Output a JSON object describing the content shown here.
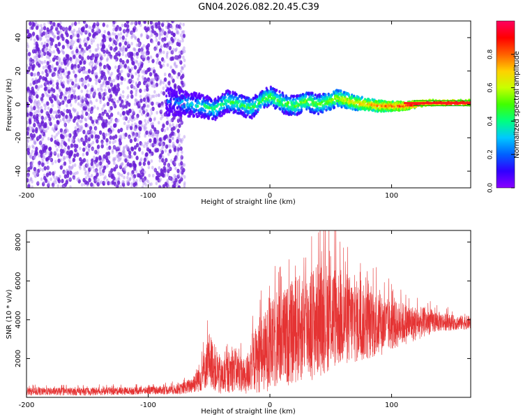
{
  "title": "GN04.2026.082.20.45.C39",
  "colors": {
    "snr_line": "#e53333",
    "scatter_noise": "#7b2fd9",
    "frame": "#000000"
  },
  "chart_data": [
    {
      "type": "heatmap",
      "name": "spectrogram",
      "xlabel": "Height of straight line (km)",
      "ylabel": "Frequency (Hz)",
      "xlim": [
        -200,
        165
      ],
      "ylim": [
        -50,
        50
      ],
      "xticks": [
        -200,
        -100,
        0,
        100
      ],
      "yticks": [
        -40,
        -20,
        0,
        20,
        40
      ],
      "colorbar": {
        "label": "Normalized spectral amplitude",
        "range": [
          0,
          1
        ],
        "ticks": [
          0.0,
          0.2,
          0.4,
          0.6,
          0.8
        ],
        "tick_labels": [
          "0.0",
          "0.2",
          "0.4",
          "0.6",
          "0.8"
        ],
        "colormap": [
          "#8a00ff",
          "#3000ff",
          "#0060ff",
          "#00c8ff",
          "#00ff80",
          "#40ff00",
          "#c8ff00",
          "#ffd000",
          "#ff6000",
          "#ff0000",
          "#ff0060"
        ]
      },
      "noise_region": {
        "x_range": [
          -200,
          -70
        ],
        "freq_range": [
          -50,
          50
        ],
        "amplitude": 0.1
      },
      "signal_track": {
        "x": [
          -85,
          -75,
          -65,
          -55,
          -45,
          -35,
          -25,
          -15,
          -5,
          0,
          10,
          20,
          30,
          40,
          50,
          55,
          60,
          70,
          80,
          90,
          100,
          110,
          120,
          130,
          140,
          150,
          165
        ],
        "freq": [
          2,
          1,
          0,
          -1,
          -3,
          2,
          0,
          -2,
          3,
          5,
          1,
          -1,
          2,
          0,
          2,
          4,
          3,
          1,
          0,
          -1,
          -1,
          -1,
          0,
          1,
          1,
          1,
          1
        ],
        "amplitude": [
          0.2,
          0.3,
          0.35,
          0.4,
          0.45,
          0.45,
          0.45,
          0.45,
          0.5,
          0.5,
          0.5,
          0.5,
          0.55,
          0.5,
          0.6,
          0.6,
          0.65,
          0.7,
          0.75,
          0.8,
          0.85,
          0.9,
          0.95,
          1.0,
          1.0,
          1.0,
          1.0
        ]
      }
    },
    {
      "type": "line",
      "name": "snr",
      "xlabel": "Height of straight line (km)",
      "ylabel": "SNR (10 * v/v)",
      "xlim": [
        -200,
        165
      ],
      "ylim": [
        0,
        8600
      ],
      "xticks": [
        -200,
        -100,
        0,
        100
      ],
      "yticks": [
        2000,
        4000,
        6000,
        8000
      ],
      "envelope": {
        "x": [
          -200,
          -150,
          -100,
          -75,
          -65,
          -55,
          -50,
          -45,
          -40,
          -35,
          -30,
          -25,
          -20,
          -15,
          -10,
          -5,
          0,
          10,
          20,
          30,
          40,
          50,
          60,
          70,
          80,
          90,
          100,
          110,
          120,
          130,
          140,
          150,
          165
        ],
        "mean": [
          300,
          300,
          350,
          400,
          600,
          1200,
          2000,
          1500,
          1000,
          1200,
          1500,
          1300,
          1000,
          1800,
          2000,
          2300,
          2600,
          3000,
          3400,
          3700,
          4000,
          4200,
          4100,
          3900,
          3800,
          3700,
          3700,
          3800,
          3800,
          3900,
          3900,
          3850,
          3850
        ],
        "amp": [
          200,
          200,
          200,
          250,
          400,
          900,
          1400,
          1200,
          1000,
          1000,
          1200,
          1000,
          900,
          1500,
          1800,
          2000,
          2300,
          2500,
          2700,
          2900,
          3000,
          2800,
          2500,
          2200,
          1900,
          1600,
          1300,
          1100,
          900,
          700,
          500,
          400,
          350
        ]
      },
      "peaks": [
        {
          "x": 40,
          "y": 8500
        },
        {
          "x": 28,
          "y": 7200
        },
        {
          "x": 8,
          "y": 6700
        },
        {
          "x": 62,
          "y": 7000
        },
        {
          "x": 80,
          "y": 6500
        },
        {
          "x": -50,
          "y": 3200
        }
      ]
    }
  ]
}
